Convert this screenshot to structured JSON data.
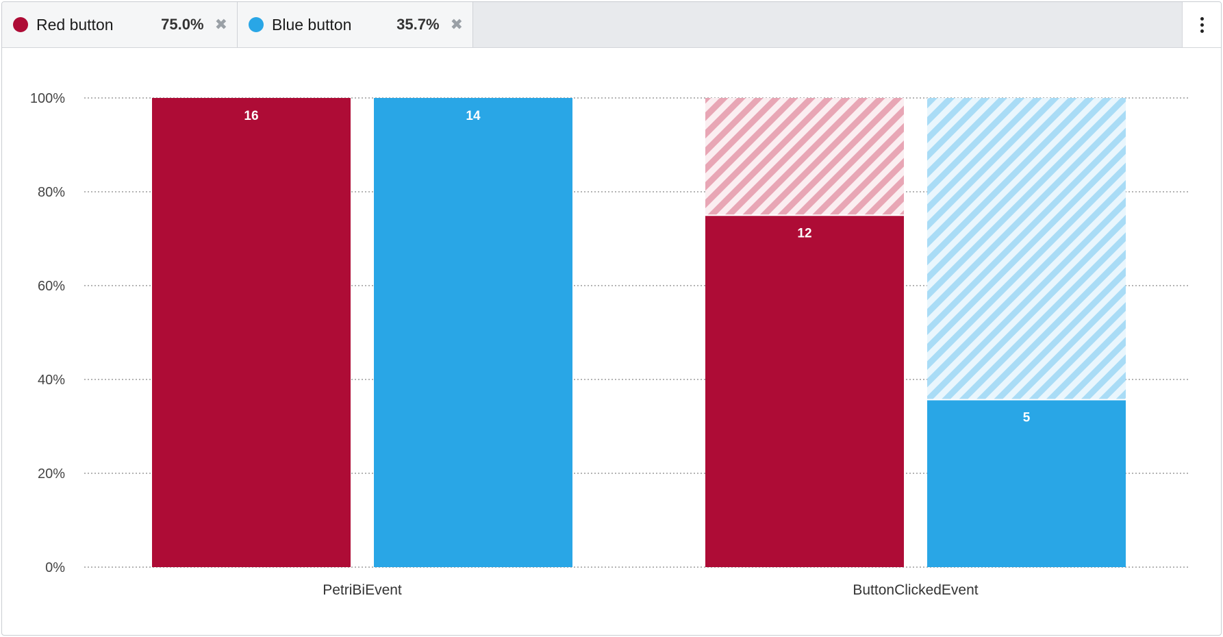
{
  "legend": {
    "items": [
      {
        "name": "Red button",
        "value": "75.0%",
        "color": "#ae0c36"
      },
      {
        "name": "Blue button",
        "value": "35.7%",
        "color": "#29a6e6"
      }
    ],
    "close_glyph": "✖",
    "menu_icon": "vertical-ellipsis-icon"
  },
  "chart_data": {
    "type": "bar",
    "stacking": "percent",
    "categories": [
      "PetriBiEvent",
      "ButtonClickedEvent"
    ],
    "series": [
      {
        "name": "Red button",
        "color": "#ae0c36",
        "hatch_color": "#e8a6b5",
        "values": [
          16,
          12
        ],
        "percent": [
          100,
          75.0
        ]
      },
      {
        "name": "Blue button",
        "color": "#29a6e6",
        "hatch_color": "#a9dcf6",
        "values": [
          14,
          5
        ],
        "percent": [
          100,
          35.7
        ]
      }
    ],
    "data_labels": [
      [
        "16",
        "12"
      ],
      [
        "14",
        "5"
      ]
    ],
    "ylim": [
      0,
      100
    ],
    "yticks": [
      0,
      20,
      40,
      60,
      80,
      100
    ],
    "ytick_labels": [
      "0%",
      "20%",
      "40%",
      "60%",
      "80%",
      "100%"
    ],
    "grid": true,
    "grid_style": "dotted",
    "title": "",
    "xlabel": "",
    "ylabel": ""
  }
}
